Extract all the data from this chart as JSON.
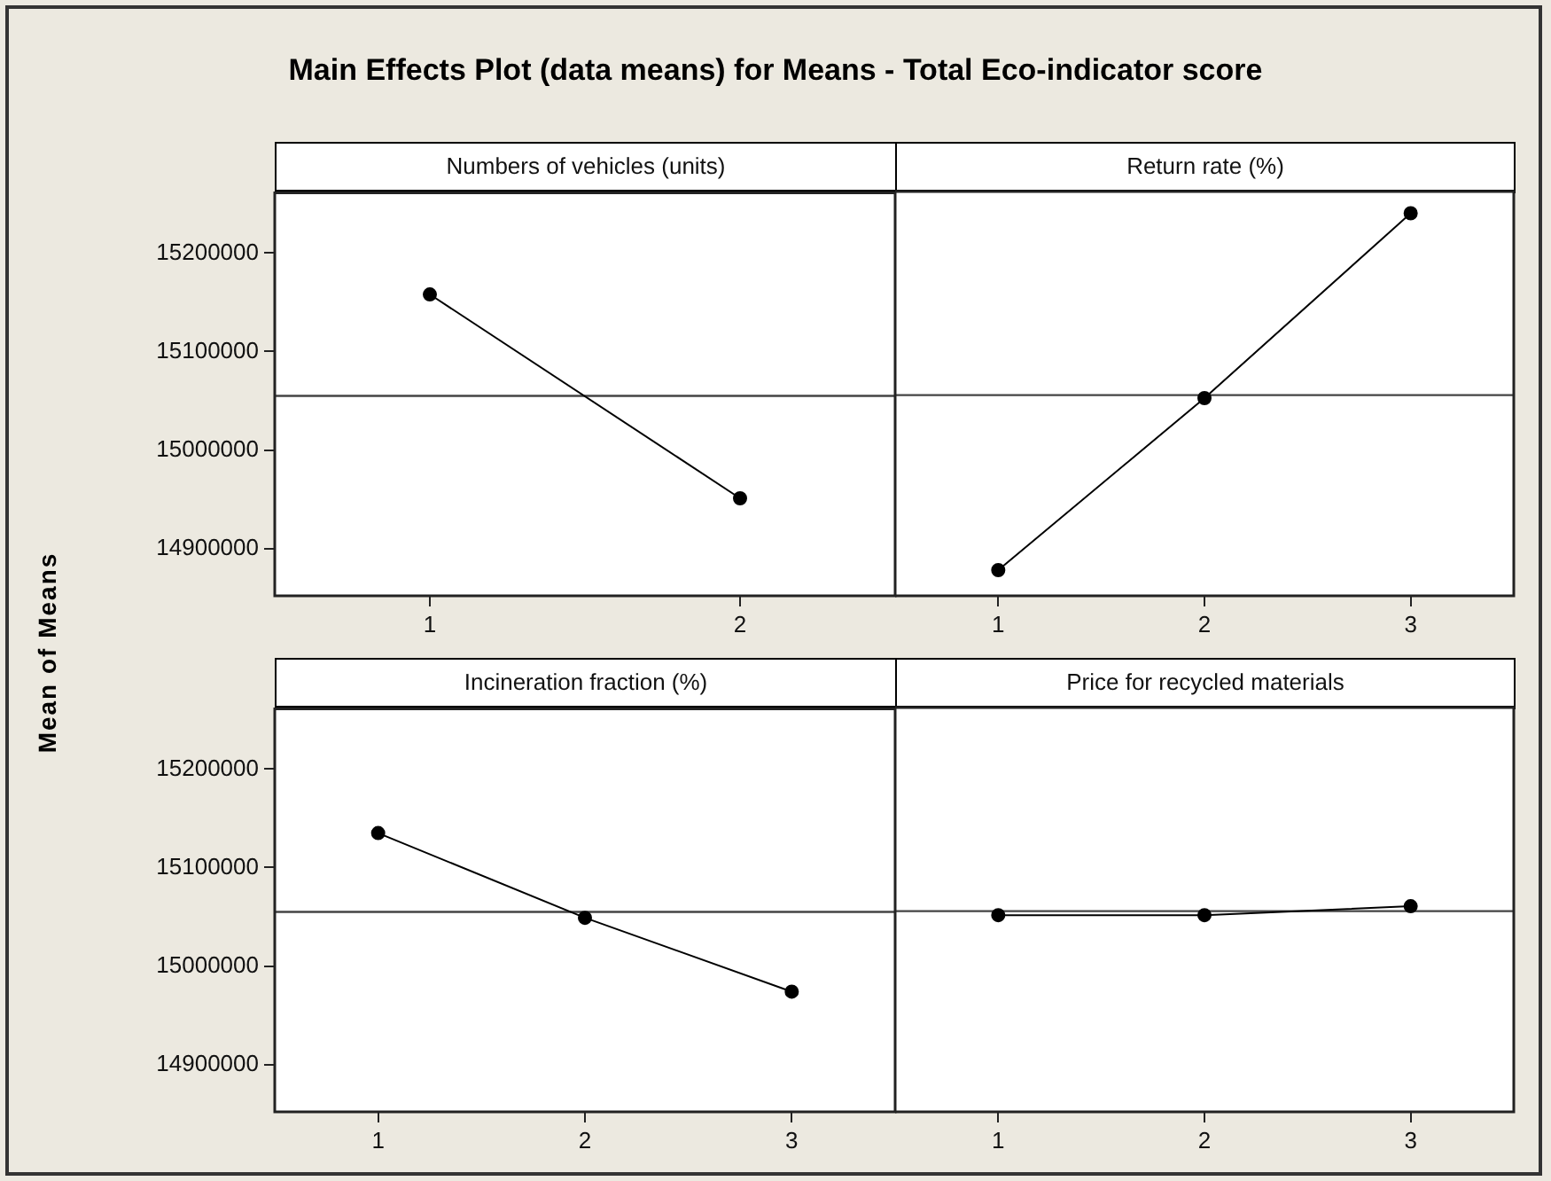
{
  "chart_data": [
    {
      "type": "line",
      "title": "Main Effects Plot (data means) for Means - Total Eco-indicator score",
      "subtitle": "Numbers of vehicles (units)",
      "ylabel": "Mean of Means",
      "x": [
        1,
        2
      ],
      "values": [
        15158000,
        14951000
      ],
      "color": "#000000",
      "marker": "circle",
      "xlim": [
        0.5,
        2.5
      ],
      "xticks": [
        1,
        2
      ],
      "ylim": [
        14852000,
        15261000
      ],
      "yticks": [
        14900000,
        15000000,
        15100000,
        15200000
      ],
      "ref_lines": [
        {
          "axis": "y",
          "value": 15055000
        }
      ],
      "legend": false
    },
    {
      "type": "line",
      "subtitle": "Return rate (%)",
      "x": [
        1,
        2,
        3
      ],
      "values": [
        14878000,
        15052000,
        15239000
      ],
      "color": "#000000",
      "marker": "circle",
      "xlim": [
        0.5,
        3.5
      ],
      "xticks": [
        1,
        2,
        3
      ],
      "ylim": [
        14852000,
        15261000
      ],
      "yticks": [
        14900000,
        15000000,
        15100000,
        15200000
      ],
      "ref_lines": [
        {
          "axis": "y",
          "value": 15055000
        }
      ],
      "legend": false,
      "tick_labels": "x"
    },
    {
      "type": "line",
      "subtitle": "Incineration fraction (%)",
      "x": [
        1,
        2,
        3
      ],
      "values": [
        15135000,
        15049000,
        14974000
      ],
      "color": "#000000",
      "marker": "circle",
      "xlim": [
        0.5,
        3.5
      ],
      "xticks": [
        1,
        2,
        3
      ],
      "ylim": [
        14852000,
        15261000
      ],
      "yticks": [
        14900000,
        15000000,
        15100000,
        15200000
      ],
      "ref_lines": [
        {
          "axis": "y",
          "value": 15055000
        }
      ],
      "legend": false
    },
    {
      "type": "line",
      "subtitle": "Price for recycled materials",
      "x": [
        1,
        2,
        3
      ],
      "values": [
        15051000,
        15051000,
        15060000
      ],
      "color": "#000000",
      "marker": "circle",
      "xlim": [
        0.5,
        3.5
      ],
      "xticks": [
        1,
        2,
        3
      ],
      "ylim": [
        14852000,
        15261000
      ],
      "yticks": [
        14900000,
        15000000,
        15100000,
        15200000
      ],
      "ref_lines": [
        {
          "axis": "y",
          "value": 15055000
        }
      ],
      "legend": false,
      "tick_labels": "x"
    }
  ]
}
